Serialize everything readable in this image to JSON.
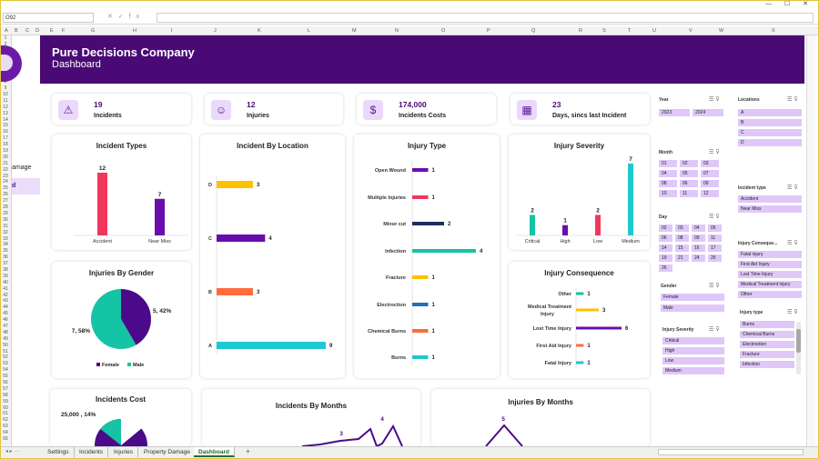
{
  "excel": {
    "name_box": "O92",
    "fx": "fx",
    "columns": [
      "A",
      "B",
      "C",
      "D",
      "E",
      "F",
      "G",
      "H",
      "I",
      "J",
      "K",
      "L",
      "M",
      "N",
      "O",
      "P",
      "Q",
      "R",
      "S",
      "T",
      "U",
      "V",
      "W",
      "X"
    ],
    "rows": [
      "1",
      "2",
      "3",
      "4",
      "5",
      "6",
      "7",
      "8",
      "9",
      "10",
      "11",
      "12",
      "13",
      "14",
      "15",
      "16",
      "17",
      "18",
      "19",
      "20",
      "21",
      "22",
      "23",
      "24",
      "25",
      "26",
      "27",
      "28",
      "29",
      "30",
      "31",
      "32",
      "33",
      "34",
      "35",
      "36",
      "37",
      "38",
      "39",
      "40",
      "41",
      "42",
      "43",
      "44",
      "45",
      "46",
      "47",
      "48",
      "49",
      "50",
      "51",
      "52",
      "53",
      "54",
      "55",
      "56",
      "57",
      "58",
      "59",
      "60",
      "61",
      "62",
      "63",
      "64",
      "65"
    ],
    "tabs": [
      "Settings",
      "Incidents",
      "Injuries",
      "Property Damage",
      "Dashboard"
    ],
    "active_tab": "Dashboard",
    "add_sheet": "+"
  },
  "sidebar": {
    "item_partial": "amage",
    "selected_partial": "d"
  },
  "header": {
    "title": "Pure Decisions Company",
    "subtitle": "Dashboard"
  },
  "kpis": [
    {
      "value": "19",
      "label": "Incidents",
      "icon": "alarm-icon"
    },
    {
      "value": "12",
      "label": "Injuries",
      "icon": "injured-person-icon"
    },
    {
      "value": "174,000",
      "label": "Incidents Costs",
      "icon": "money-icon"
    },
    {
      "value": "23",
      "label": "Days, sincs last Incident",
      "icon": "calendar-icon"
    }
  ],
  "colors": {
    "purple": "#6a0dad",
    "pink": "#f0375c",
    "yellow": "#ffc000",
    "navy": "#1f2d5c",
    "teal": "#14c4a4",
    "orange": "#ff6b3d",
    "blue": "#1f6fc4",
    "cyan": "#1ec8d0"
  },
  "chart_data": [
    {
      "type": "bar",
      "title": "Incident Types",
      "categories": [
        "Accident",
        "Near Miss"
      ],
      "values": [
        12,
        7
      ],
      "colors": [
        "#f0375c",
        "#6a0dad"
      ]
    },
    {
      "type": "bar",
      "orientation": "horizontal",
      "title": "Incident By Location",
      "categories": [
        "D",
        "C",
        "B",
        "A"
      ],
      "values": [
        3,
        4,
        3,
        9
      ],
      "colors": [
        "#ffc000",
        "#6a0dad",
        "#ff6b3d",
        "#1ec8d0"
      ]
    },
    {
      "type": "bar",
      "orientation": "horizontal",
      "title": "Injury Type",
      "categories": [
        "Open Wound",
        "Multiple Injuries",
        "Minor cut",
        "Infection",
        "Fracture",
        "Electroction",
        "Chemical Burns",
        "Burns"
      ],
      "values": [
        1,
        1,
        2,
        4,
        1,
        1,
        1,
        1
      ],
      "colors": [
        "#6a0dad",
        "#f0375c",
        "#1f2d5c",
        "#14c4a4",
        "#ffc000",
        "#1f6fc4",
        "#ff6b3d",
        "#1ec8d0"
      ]
    },
    {
      "type": "bar",
      "title": "Injury Severity",
      "categories": [
        "Critical",
        "High",
        "Low",
        "Medium"
      ],
      "values": [
        2,
        1,
        2,
        7
      ],
      "colors": [
        "#14c4a4",
        "#6a0dad",
        "#f0375c",
        "#1ec8d0"
      ]
    },
    {
      "type": "pie",
      "title": "Injuries By Gender",
      "categories": [
        "Female",
        "Male"
      ],
      "values": [
        5,
        7
      ],
      "labels": [
        "5, 42%",
        "7, 58%"
      ],
      "colors": [
        "#4a0a8a",
        "#14c4a4"
      ]
    },
    {
      "type": "bar",
      "orientation": "horizontal",
      "title": "Injury Consequence",
      "categories": [
        "Other",
        "Medical Treatment Injury",
        "Lost Time Injury",
        "First Aid Injury",
        "Fatal Injury"
      ],
      "values": [
        1,
        3,
        6,
        1,
        1
      ],
      "colors": [
        "#14c4a4",
        "#ffc000",
        "#6a0dad",
        "#ff6b3d",
        "#1ec8d0"
      ]
    },
    {
      "type": "pie",
      "title": "Incidents Cost",
      "labels": [
        "25,000 , 14%"
      ],
      "values": [
        14
      ],
      "colors": [
        "#14c4a4",
        "#4a0a8a"
      ]
    },
    {
      "type": "line",
      "title": "Incidents By Months",
      "visible_labels": [
        "3",
        "4"
      ]
    },
    {
      "type": "line",
      "title": "Injuries By Months",
      "visible_labels": [
        "5"
      ]
    }
  ],
  "slicers": {
    "year": {
      "title": "Year",
      "items": [
        "2023",
        "2024"
      ]
    },
    "locations": {
      "title": "Locations",
      "items": [
        "A",
        "B",
        "C",
        "D"
      ]
    },
    "month": {
      "title": "Month",
      "items": [
        "01",
        "02",
        "03",
        "04",
        "05",
        "07",
        "08",
        "06",
        "09",
        "10",
        "11",
        "12"
      ]
    },
    "incident_type": {
      "title": "Incident type",
      "items": [
        "Accident",
        "Near Miss"
      ]
    },
    "day": {
      "title": "Day",
      "items": [
        "02",
        "03",
        "04",
        "05",
        "06",
        "08",
        "09",
        "11",
        "14",
        "15",
        "16",
        "17",
        "19",
        "21",
        "24",
        "25",
        "26"
      ]
    },
    "injury_consequence": {
      "title": "Injury Conseque...",
      "items": [
        "Fatal injury",
        "First Aid Injury",
        "Lost Time Injury",
        "Medical Treatment injury",
        "Other"
      ]
    },
    "gender": {
      "title": "Gender",
      "items": [
        "Female",
        "Male"
      ]
    },
    "injury_severity": {
      "title": "Injury Severity",
      "items": [
        "Critical",
        "High",
        "Low",
        "Medium"
      ]
    },
    "injury_type": {
      "title": "Injury type",
      "items": [
        "Burns",
        "Chemical Burns",
        "Electroction",
        "Fracture",
        "Infection"
      ]
    }
  }
}
